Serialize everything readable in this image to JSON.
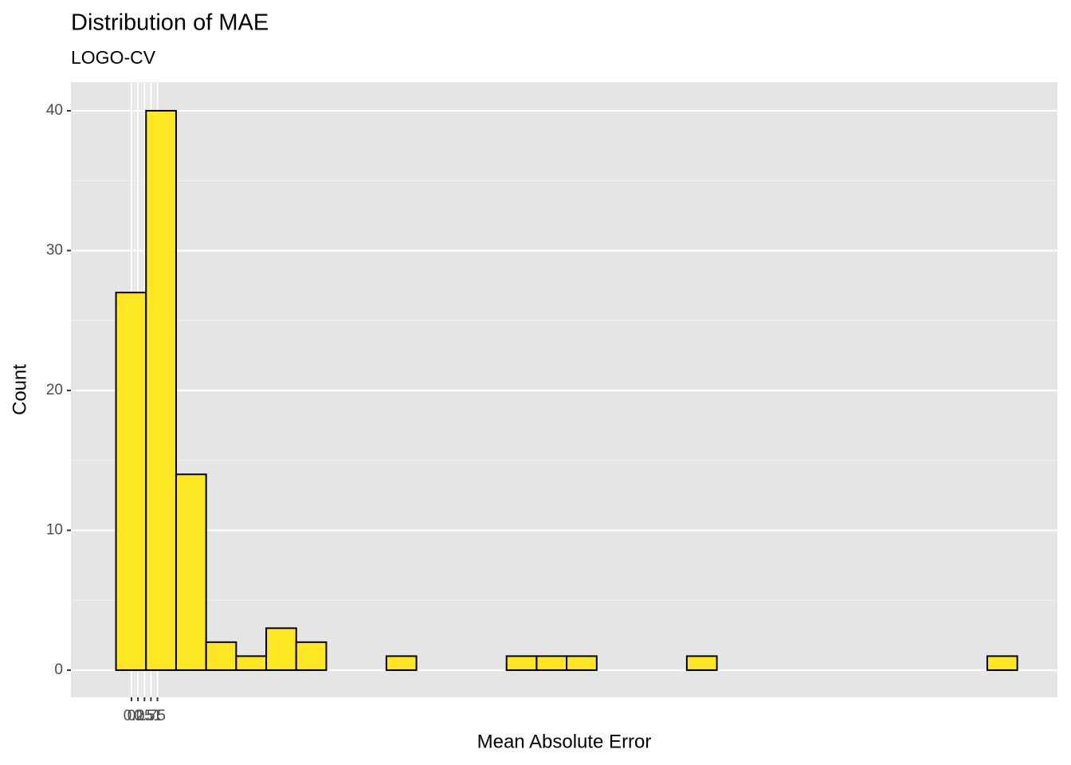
{
  "chart_data": {
    "type": "histogram",
    "title": "Distribution of MAE",
    "subtitle": "LOGO-CV",
    "x_label": "Mean Absolute Error",
    "y_label": "Count",
    "bins": [
      -0.6,
      0.56,
      1.72,
      2.88,
      4.04,
      5.2,
      6.36,
      7.52,
      8.68,
      9.84,
      11,
      12.16,
      13.32,
      14.48,
      15.64,
      16.8,
      17.96,
      19.12,
      20.28,
      21.44,
      22.6,
      23.76,
      24.92,
      26.08,
      27.24,
      28.4,
      29.56,
      30.72,
      31.88,
      33.04,
      34.2
    ],
    "values": [
      27,
      40,
      14,
      2,
      1,
      3,
      2,
      0,
      0,
      1,
      0,
      0,
      0,
      1,
      1,
      1,
      0,
      0,
      0,
      1,
      0,
      0,
      0,
      0,
      0,
      0,
      0,
      0,
      0,
      1
    ],
    "color": "#fde725",
    "edge_color": "#000000",
    "xlim": [
      -2.34,
      35.75
    ],
    "xticks": [
      0,
      0.25,
      0.5,
      0.75,
      1
    ],
    "ylim": [
      -1.94,
      42.05
    ],
    "yticks": [
      0,
      10,
      20,
      30,
      40
    ],
    "grid": true
  }
}
